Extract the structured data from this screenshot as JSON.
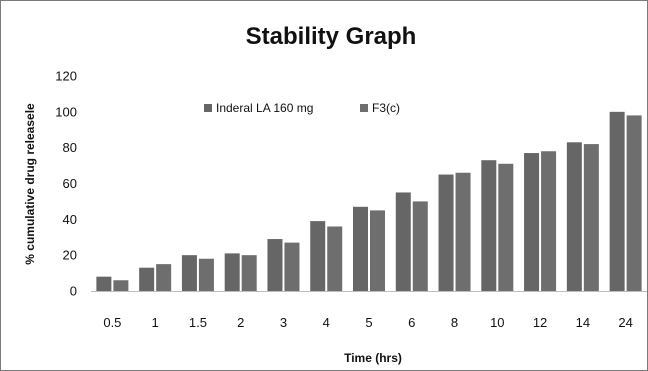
{
  "chart_data": {
    "type": "bar",
    "title": "Stability Graph",
    "xlabel": "Time (hrs)",
    "ylabel": "% cumulative drug releasele",
    "categories": [
      "0.5",
      "1",
      "1.5",
      "2",
      "3",
      "4",
      "5",
      "6",
      "8",
      "10",
      "12",
      "14",
      "24"
    ],
    "series": [
      {
        "name": "Inderal LA  160 mg",
        "values": [
          8,
          13,
          20,
          21,
          29,
          39,
          47,
          55,
          65,
          73,
          77,
          83,
          100
        ],
        "color": "#666666"
      },
      {
        "name": "F3(c)",
        "values": [
          6,
          15,
          18,
          20,
          27,
          36,
          45,
          50,
          66,
          71,
          78,
          82,
          98
        ],
        "color": "#6e6e6e"
      }
    ],
    "ylim": [
      0,
      120
    ],
    "yticks": [
      0,
      20,
      40,
      60,
      80,
      100,
      120
    ],
    "grid": false,
    "legend_position": "top-center"
  }
}
